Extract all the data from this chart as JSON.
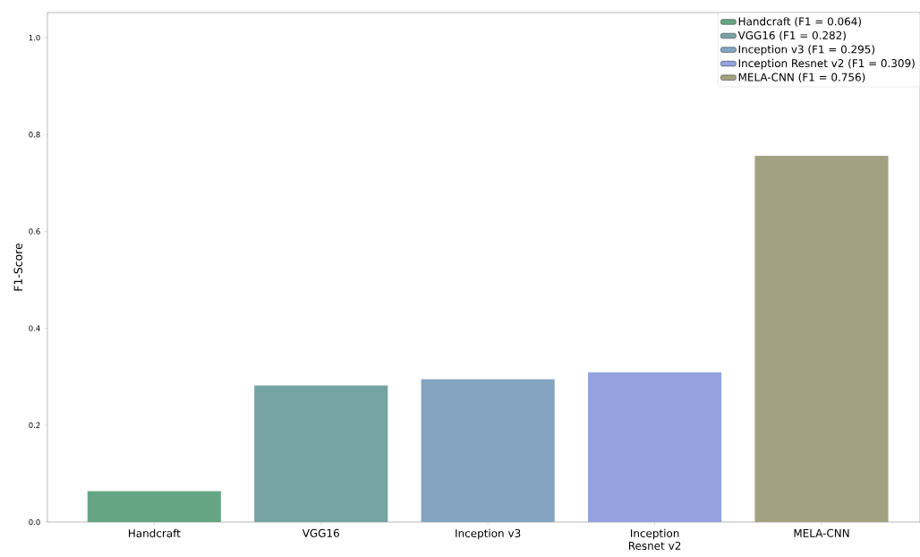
{
  "chart_data": {
    "type": "bar",
    "ylabel": "F1-Score",
    "categories": [
      "Handcraft",
      "VGG16",
      "Inception v3",
      "Inception Resnet v2",
      "MELA-CNN"
    ],
    "series": [
      {
        "name": "Handcraft (F1 = 0.064)",
        "color": "#66a583",
        "values": [
          0.064,
          null,
          null,
          null,
          null
        ]
      },
      {
        "name": "VGG16 (F1 = 0.282)",
        "color": "#76a3a3",
        "values": [
          null,
          0.282,
          null,
          null,
          null
        ]
      },
      {
        "name": "Inception v3 (F1 = 0.295)",
        "color": "#84a4c0",
        "values": [
          null,
          null,
          0.295,
          null,
          null
        ]
      },
      {
        "name": "Inception Resnet v2 (F1 = 0.309)",
        "color": "#94a3df",
        "values": [
          null,
          null,
          null,
          0.309,
          null
        ]
      },
      {
        "name": "MELA-CNN (F1 = 0.756)",
        "color": "#a2a283",
        "values": [
          null,
          null,
          null,
          null,
          0.756
        ]
      }
    ],
    "ylim": [
      0,
      1.052
    ],
    "yticks": [
      {
        "value": 0,
        "label": "0.0"
      },
      {
        "value": 0.2,
        "label": "0.2"
      },
      {
        "value": 0.4,
        "label": "0.4"
      },
      {
        "value": 0.6,
        "label": "0.6"
      },
      {
        "value": 0.8,
        "label": "0.8"
      },
      {
        "value": 1.0,
        "label": "1.0"
      }
    ],
    "legend": "top right",
    "grid": false
  }
}
